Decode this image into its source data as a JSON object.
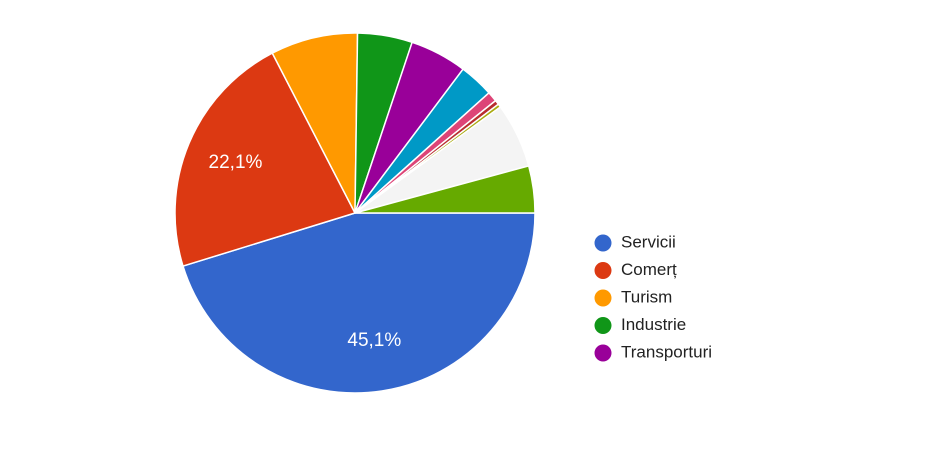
{
  "chart_data": {
    "type": "pie",
    "categories": [
      "Servicii",
      "Comerț",
      "Turism",
      "Industrie",
      "Transporturi",
      null,
      null,
      null,
      null,
      null,
      null
    ],
    "values": [
      45.1,
      22.1,
      7.8,
      4.9,
      5.1,
      3.1,
      0.9,
      0.4,
      0.3,
      5.8,
      4.2
    ],
    "value_labels": [
      "45,1%",
      "22,1%",
      null,
      null,
      null,
      null,
      null,
      null,
      null,
      null,
      null
    ],
    "colors": [
      "#3366cc",
      "#dc3912",
      "#ff9900",
      "#109618",
      "#990099",
      "#0099c6",
      "#dd4477",
      "#b82e2e",
      "#aaaa11",
      "#f4f4f4",
      "#66aa00"
    ],
    "legend": "right"
  }
}
